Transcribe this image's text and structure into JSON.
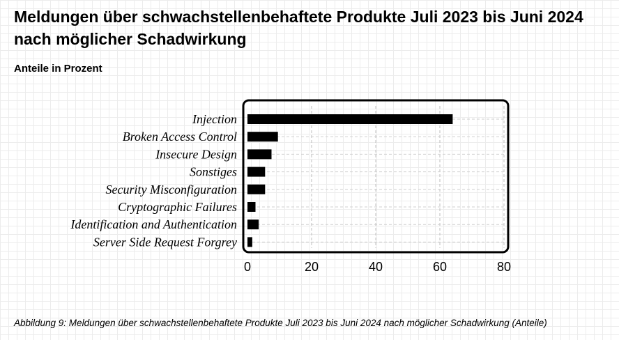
{
  "header": {
    "title": "Meldungen über schwachstellenbehaftete Produkte Juli 2023 bis Juni 2024 nach möglicher Schadwirkung",
    "subtitle": "Anteile in Prozent"
  },
  "caption": "Abbildung 9: Meldungen über schwachstellenbehaftete Produkte Juli 2023 bis Juni 2024 nach möglicher Schadwirkung (Anteile)",
  "chart_data": {
    "type": "bar",
    "orientation": "horizontal",
    "title": "Meldungen über schwachstellenbehaftete Produkte Juli 2023 bis Juni 2024 nach möglicher Schadwirkung",
    "subtitle": "Anteile in Prozent",
    "categories": [
      "Injection",
      "Broken Access Control",
      "Insecure Design",
      "Sonstiges",
      "Security Misconfiguration",
      "Cryptographic Failures",
      "Identification and Authentication",
      "Server Side Request Forgrey"
    ],
    "values": [
      64,
      9.5,
      7.5,
      5.5,
      5.5,
      2.5,
      3.5,
      1.5
    ],
    "xlim": [
      0,
      80
    ],
    "xticks": [
      0,
      20,
      40,
      60,
      80
    ],
    "grid": true,
    "bar_color": "#000000"
  }
}
